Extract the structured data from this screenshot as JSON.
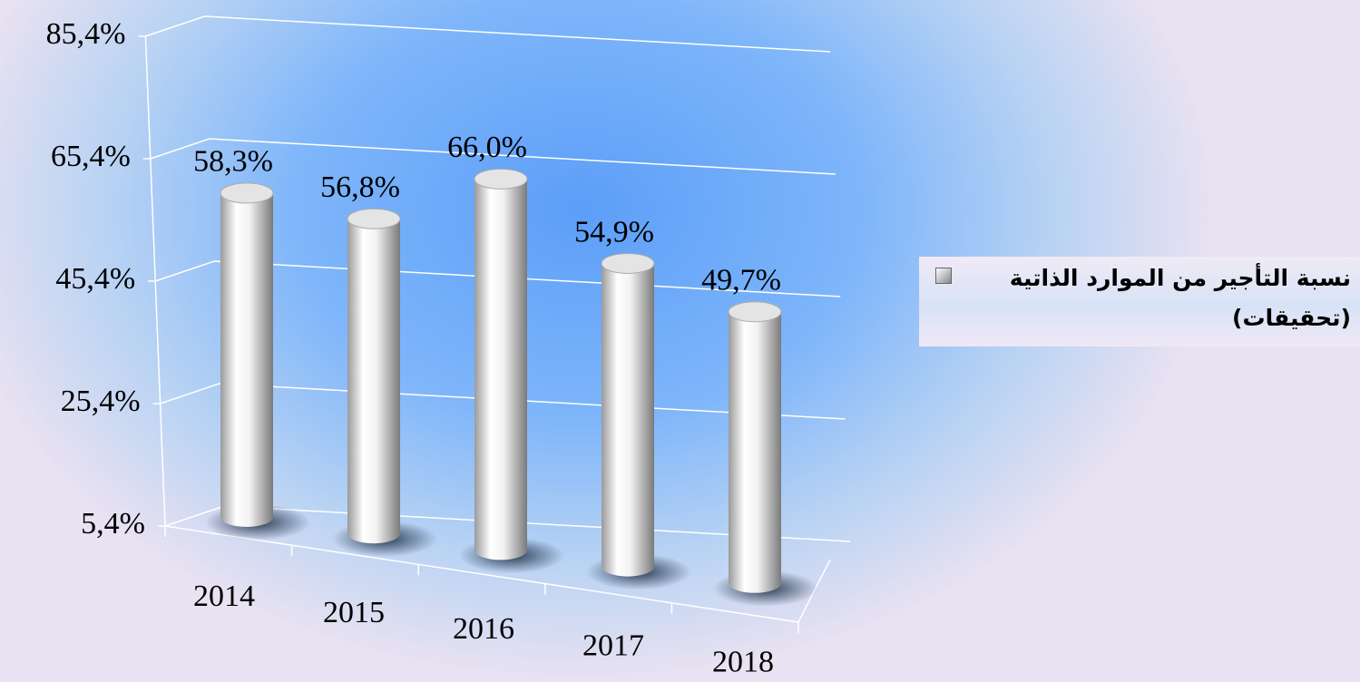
{
  "chart_data": {
    "type": "bar3d",
    "categories": [
      "2014",
      "2015",
      "2016",
      "2017",
      "2018"
    ],
    "series": [
      {
        "name": "نسبة التأجير من الموارد الذاتية (تحقيقات)",
        "color": "#ffffff",
        "values": [
          58.3,
          56.8,
          66.0,
          54.9,
          49.7
        ],
        "value_labels": [
          "58,3%",
          "56,8%",
          "66,0%",
          "54,9%",
          "49,7%"
        ]
      }
    ],
    "ylim": [
      5.4,
      85.4
    ],
    "yticks": [
      {
        "value": 5.4,
        "label": "5,4%"
      },
      {
        "value": 25.4,
        "label": "25,4%"
      },
      {
        "value": 45.4,
        "label": "45,4%"
      },
      {
        "value": 65.4,
        "label": "65,4%"
      },
      {
        "value": 85.4,
        "label": "85,4%"
      }
    ],
    "grid": true,
    "legend": "right"
  }
}
